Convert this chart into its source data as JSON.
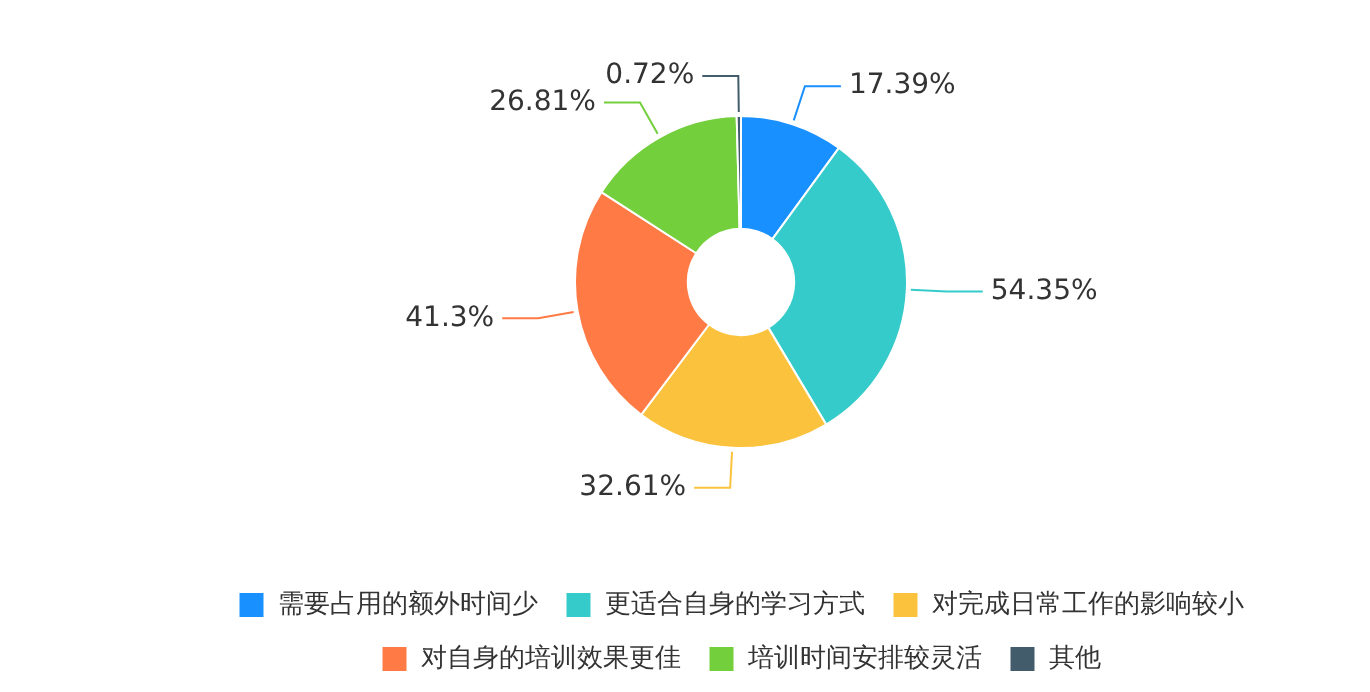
{
  "chart_data": {
    "type": "donut",
    "categories": [
      "需要占用的额外时间少",
      "更适合自身的学习方式",
      "对完成日常工作的影响较小",
      "对自身的培训效果更佳",
      "培训时间安排较灵活",
      "其他"
    ],
    "values": [
      17.39,
      54.35,
      32.61,
      41.3,
      26.81,
      0.72
    ],
    "value_labels": [
      "17.39%",
      "54.35%",
      "32.61%",
      "41.3%",
      "26.81%",
      "0.72%"
    ],
    "colors": [
      "#1890ff",
      "#36cbcb",
      "#fbc33d",
      "#ff7a45",
      "#73cf3c",
      "#435c6b"
    ],
    "legend": "bottom"
  }
}
